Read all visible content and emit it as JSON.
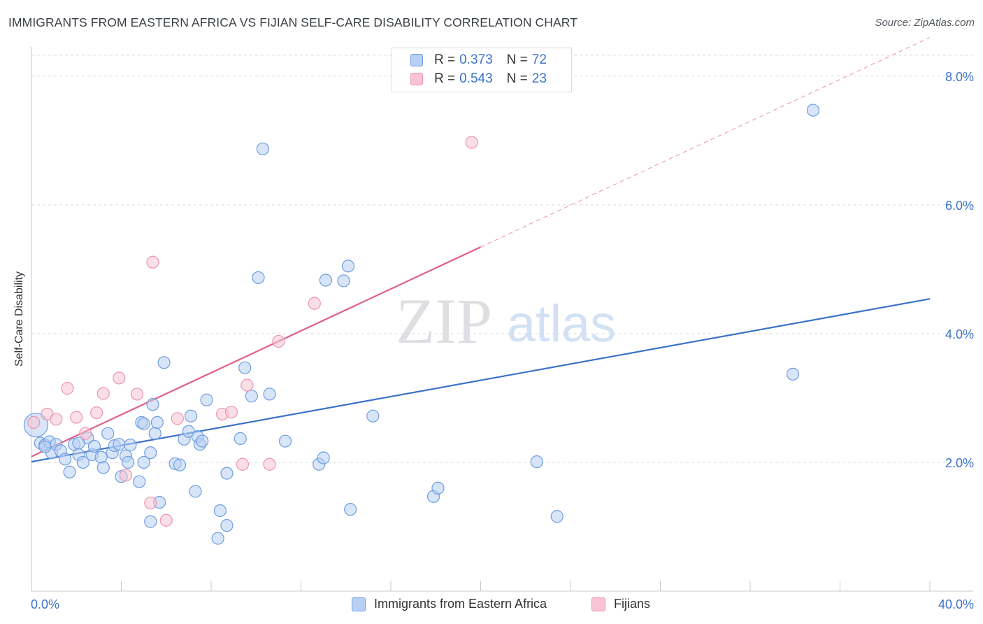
{
  "header": {
    "title": "IMMIGRANTS FROM EASTERN AFRICA VS FIJIAN SELF-CARE DISABILITY CORRELATION CHART",
    "source": "Source: ZipAtlas.com"
  },
  "watermark": {
    "zip": "ZIP",
    "atlas": "atlas"
  },
  "colors": {
    "blue": "#3b73c9",
    "blue_fill": "#b8d0f3",
    "blue_stroke": "#6e9ee0",
    "pink": "#e0608a",
    "pink_fill": "#f8c4d4",
    "pink_stroke": "#ec95b1",
    "grid": "#d9dde2",
    "axis_tick_text": "#3b73c9"
  },
  "legend_top": {
    "rows": [
      {
        "key": "R =",
        "r": "0.373",
        "nkey": "N =",
        "n": "72"
      },
      {
        "key": "R =",
        "r": "0.543",
        "nkey": "N =",
        "n": "23"
      }
    ]
  },
  "legend_bottom": {
    "items": [
      {
        "label": "Immigrants from Eastern Africa"
      },
      {
        "label": "Fijians"
      }
    ]
  },
  "chart_data": {
    "type": "scatter",
    "title": "IMMIGRANTS FROM EASTERN AFRICA VS FIJIAN SELF-CARE DISABILITY CORRELATION CHART",
    "xlabel": "",
    "ylabel": "Self-Care Disability",
    "xlim": [
      0,
      40
    ],
    "ylim": [
      0,
      8.4
    ],
    "x_tick_labels": [
      "0.0%",
      "40.0%"
    ],
    "y_ticks": [
      2,
      4,
      6,
      8
    ],
    "y_tick_labels": [
      "2.0%",
      "4.0%",
      "6.0%",
      "8.0%"
    ],
    "grid": "horizontal dashed",
    "legend_placement": "top-center and bottom",
    "series": [
      {
        "name": "Immigrants from Eastern Africa",
        "r": 0.373,
        "n": 72,
        "trend": {
          "x": [
            0,
            40
          ],
          "y": [
            2.01,
            4.54
          ],
          "style": "solid"
        },
        "points": [
          [
            0.2,
            2.58
          ],
          [
            0.4,
            2.3
          ],
          [
            0.6,
            2.27
          ],
          [
            0.8,
            2.32
          ],
          [
            0.9,
            2.15
          ],
          [
            1.1,
            2.28
          ],
          [
            1.3,
            2.18
          ],
          [
            1.5,
            2.05
          ],
          [
            1.7,
            1.85
          ],
          [
            1.9,
            2.28
          ],
          [
            2.1,
            2.12
          ],
          [
            2.3,
            2.0
          ],
          [
            2.5,
            2.38
          ],
          [
            2.7,
            2.12
          ],
          [
            2.8,
            2.25
          ],
          [
            3.1,
            2.08
          ],
          [
            3.2,
            1.92
          ],
          [
            3.4,
            2.45
          ],
          [
            3.6,
            2.15
          ],
          [
            3.7,
            2.26
          ],
          [
            3.9,
            2.28
          ],
          [
            4.0,
            1.78
          ],
          [
            4.2,
            2.1
          ],
          [
            4.3,
            2.0
          ],
          [
            4.4,
            2.27
          ],
          [
            4.8,
            1.7
          ],
          [
            4.9,
            2.62
          ],
          [
            5.0,
            2.6
          ],
          [
            5.3,
            2.15
          ],
          [
            5.4,
            2.9
          ],
          [
            5.5,
            2.45
          ],
          [
            5.6,
            2.62
          ],
          [
            5.7,
            1.38
          ],
          [
            5.3,
            1.08
          ],
          [
            5.9,
            3.55
          ],
          [
            6.4,
            1.98
          ],
          [
            6.6,
            1.96
          ],
          [
            6.8,
            2.36
          ],
          [
            7.0,
            2.48
          ],
          [
            7.1,
            2.72
          ],
          [
            7.3,
            1.55
          ],
          [
            7.4,
            2.4
          ],
          [
            7.5,
            2.28
          ],
          [
            7.6,
            2.33
          ],
          [
            7.8,
            2.97
          ],
          [
            8.3,
            0.82
          ],
          [
            8.4,
            1.25
          ],
          [
            8.7,
            1.02
          ],
          [
            8.7,
            1.83
          ],
          [
            9.3,
            2.37
          ],
          [
            9.5,
            3.47
          ],
          [
            9.8,
            3.03
          ],
          [
            10.1,
            4.87
          ],
          [
            10.3,
            6.87
          ],
          [
            10.6,
            3.06
          ],
          [
            11.3,
            2.33
          ],
          [
            12.8,
            1.97
          ],
          [
            13.0,
            2.07
          ],
          [
            13.1,
            4.83
          ],
          [
            13.9,
            4.82
          ],
          [
            14.1,
            5.05
          ],
          [
            14.2,
            1.27
          ],
          [
            15.2,
            2.72
          ],
          [
            17.9,
            1.47
          ],
          [
            18.1,
            1.6
          ],
          [
            22.5,
            2.01
          ],
          [
            23.4,
            1.16
          ],
          [
            33.9,
            3.37
          ],
          [
            34.8,
            7.47
          ],
          [
            0.6,
            2.24
          ],
          [
            2.1,
            2.3
          ],
          [
            5.0,
            2.0
          ]
        ]
      },
      {
        "name": "Fijians",
        "r": 0.543,
        "n": 23,
        "trend": {
          "x": [
            0,
            40
          ],
          "y": [
            2.09,
            8.6
          ],
          "solid_until_x": 20,
          "style": "solid then dashed"
        },
        "points": [
          [
            0.1,
            2.62
          ],
          [
            0.7,
            2.75
          ],
          [
            1.1,
            2.67
          ],
          [
            1.6,
            3.15
          ],
          [
            2.0,
            2.7
          ],
          [
            2.4,
            2.45
          ],
          [
            2.9,
            2.77
          ],
          [
            3.2,
            3.07
          ],
          [
            3.9,
            3.31
          ],
          [
            4.2,
            1.8
          ],
          [
            4.7,
            3.06
          ],
          [
            5.3,
            1.37
          ],
          [
            5.4,
            5.11
          ],
          [
            6.0,
            1.1
          ],
          [
            6.5,
            2.68
          ],
          [
            8.5,
            2.75
          ],
          [
            8.9,
            2.78
          ],
          [
            9.4,
            1.97
          ],
          [
            9.6,
            3.2
          ],
          [
            10.6,
            1.97
          ],
          [
            11.0,
            3.88
          ],
          [
            12.6,
            4.47
          ],
          [
            19.6,
            6.97
          ]
        ]
      }
    ]
  }
}
